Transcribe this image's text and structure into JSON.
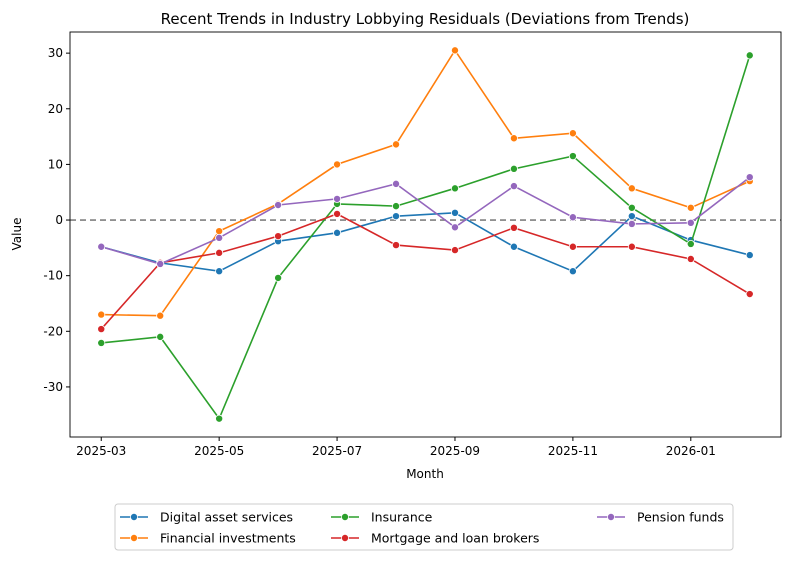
{
  "chart_data": {
    "type": "line",
    "title": "Recent Trends in Industry Lobbying Residuals (Deviations from Trends)",
    "xlabel": "Month",
    "ylabel": "Value",
    "x": [
      "2025-03",
      "2025-04",
      "2025-05",
      "2025-06",
      "2025-07",
      "2025-08",
      "2025-09",
      "2025-10",
      "2025-11",
      "2025-12",
      "2026-01",
      "2026-02"
    ],
    "xticks": [
      "2025-03",
      "2025-05",
      "2025-07",
      "2025-09",
      "2025-11",
      "2026-01"
    ],
    "yticks": [
      -30,
      -20,
      -10,
      0,
      10,
      20,
      30
    ],
    "ylim": [
      -39,
      33.8
    ],
    "reference_line": {
      "y": 0,
      "style": "dashed",
      "color": "#808080"
    },
    "grid": false,
    "legend_placement": "bottom",
    "series": [
      {
        "name": "Digital asset services",
        "color": "#1f77b4",
        "values": [
          -4.8,
          -7.7,
          -9.2,
          -3.8,
          -2.3,
          0.7,
          1.3,
          -4.8,
          -9.2,
          0.7,
          -3.6,
          -6.3
        ]
      },
      {
        "name": "Financial investments",
        "color": "#ff7f0e",
        "values": [
          -17.0,
          -17.2,
          -2.0,
          2.9,
          10.0,
          13.6,
          30.5,
          14.7,
          15.6,
          5.7,
          2.2,
          7.0
        ]
      },
      {
        "name": "Insurance",
        "color": "#2ca02c",
        "values": [
          -22.1,
          -21.0,
          -35.7,
          -10.4,
          2.9,
          2.5,
          5.7,
          9.2,
          11.5,
          2.2,
          -4.3,
          29.6
        ]
      },
      {
        "name": "Mortgage and loan brokers",
        "color": "#d62728",
        "values": [
          -19.6,
          -7.7,
          -5.9,
          -2.9,
          1.1,
          -4.5,
          -5.4,
          -1.4,
          -4.8,
          -4.8,
          -7.0,
          -13.3
        ]
      },
      {
        "name": "Pension funds",
        "color": "#9467bd",
        "values": [
          -4.8,
          -7.9,
          -3.2,
          2.7,
          3.8,
          6.5,
          -1.3,
          6.1,
          0.5,
          -0.7,
          -0.5,
          7.7
        ]
      }
    ]
  }
}
